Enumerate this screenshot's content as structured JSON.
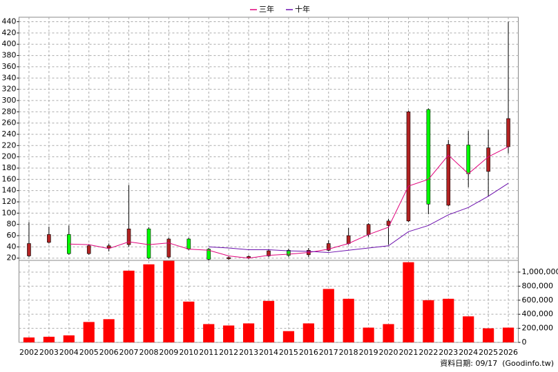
{
  "chart_data": {
    "type": "candlestick",
    "categories": [
      "2002",
      "2003",
      "2004",
      "2005",
      "2006",
      "2007",
      "2008",
      "2009",
      "2010",
      "2011",
      "2012",
      "2013",
      "2014",
      "2015",
      "2016",
      "2017",
      "2018",
      "2019",
      "2020",
      "2021",
      "2022",
      "2023",
      "2024",
      "2025",
      "2026"
    ],
    "open": [
      24,
      48,
      62,
      28,
      38,
      44,
      72,
      22,
      54,
      36,
      19,
      20,
      24,
      34,
      26,
      34,
      46,
      62,
      78,
      86,
      284,
      114,
      221,
      174,
      218
    ],
    "high": [
      84,
      76,
      78,
      45,
      46,
      150,
      75,
      56,
      56,
      38,
      23,
      25,
      36,
      37,
      38,
      52,
      74,
      82,
      90,
      282,
      286,
      230,
      246,
      248,
      440
    ],
    "low": [
      22,
      46,
      26,
      26,
      32,
      40,
      18,
      20,
      34,
      16,
      17,
      18,
      22,
      22,
      22,
      32,
      44,
      58,
      44,
      84,
      98,
      112,
      146,
      130,
      206
    ],
    "close": [
      46,
      62,
      28,
      42,
      42,
      72,
      20,
      54,
      36,
      18,
      21,
      23,
      33,
      25,
      34,
      46,
      60,
      80,
      86,
      280,
      116,
      222,
      170,
      216,
      268
    ],
    "up_color": "#b22222",
    "down_color": "#00ff00",
    "series": [
      {
        "name": "三年",
        "color": "#e0007a",
        "values": [
          null,
          null,
          45,
          44,
          37,
          49,
          44,
          47,
          36,
          34,
          24,
          20,
          25,
          27,
          30,
          36,
          46,
          62,
          75,
          148,
          160,
          203,
          170,
          200,
          218
        ]
      },
      {
        "name": "十年",
        "color": "#6a0dad",
        "values": [
          null,
          null,
          null,
          null,
          null,
          null,
          null,
          null,
          null,
          40,
          38,
          35,
          35,
          33,
          32,
          30,
          34,
          38,
          42,
          67,
          78,
          97,
          110,
          130,
          153
        ]
      }
    ],
    "volume": {
      "color": "#ff0000",
      "axis": "y2",
      "values": [
        70000,
        80000,
        100000,
        290000,
        330000,
        1020000,
        1110000,
        1160000,
        580000,
        260000,
        240000,
        270000,
        590000,
        160000,
        270000,
        760000,
        620000,
        210000,
        260000,
        1140000,
        600000,
        620000,
        370000,
        200000,
        210000
      ]
    },
    "ylim": [
      16,
      448
    ],
    "yticks": [
      20,
      40,
      60,
      80,
      100,
      120,
      140,
      160,
      180,
      200,
      220,
      240,
      260,
      280,
      300,
      320,
      340,
      360,
      380,
      400,
      420,
      440
    ],
    "y2lim": [
      0,
      1166000
    ],
    "y2ticks": [
      0,
      {
        "value": 200000,
        "label": "200,000"
      },
      {
        "value": 400000,
        "label": "400,000"
      },
      {
        "value": 600000,
        "label": "600,000"
      },
      {
        "value": 800000,
        "label": "800,000"
      },
      {
        "value": 1000000,
        "label": "1,000,000"
      }
    ],
    "grid": true,
    "footer": "資料日期: 09/17  (Goodinfo.tw)"
  }
}
